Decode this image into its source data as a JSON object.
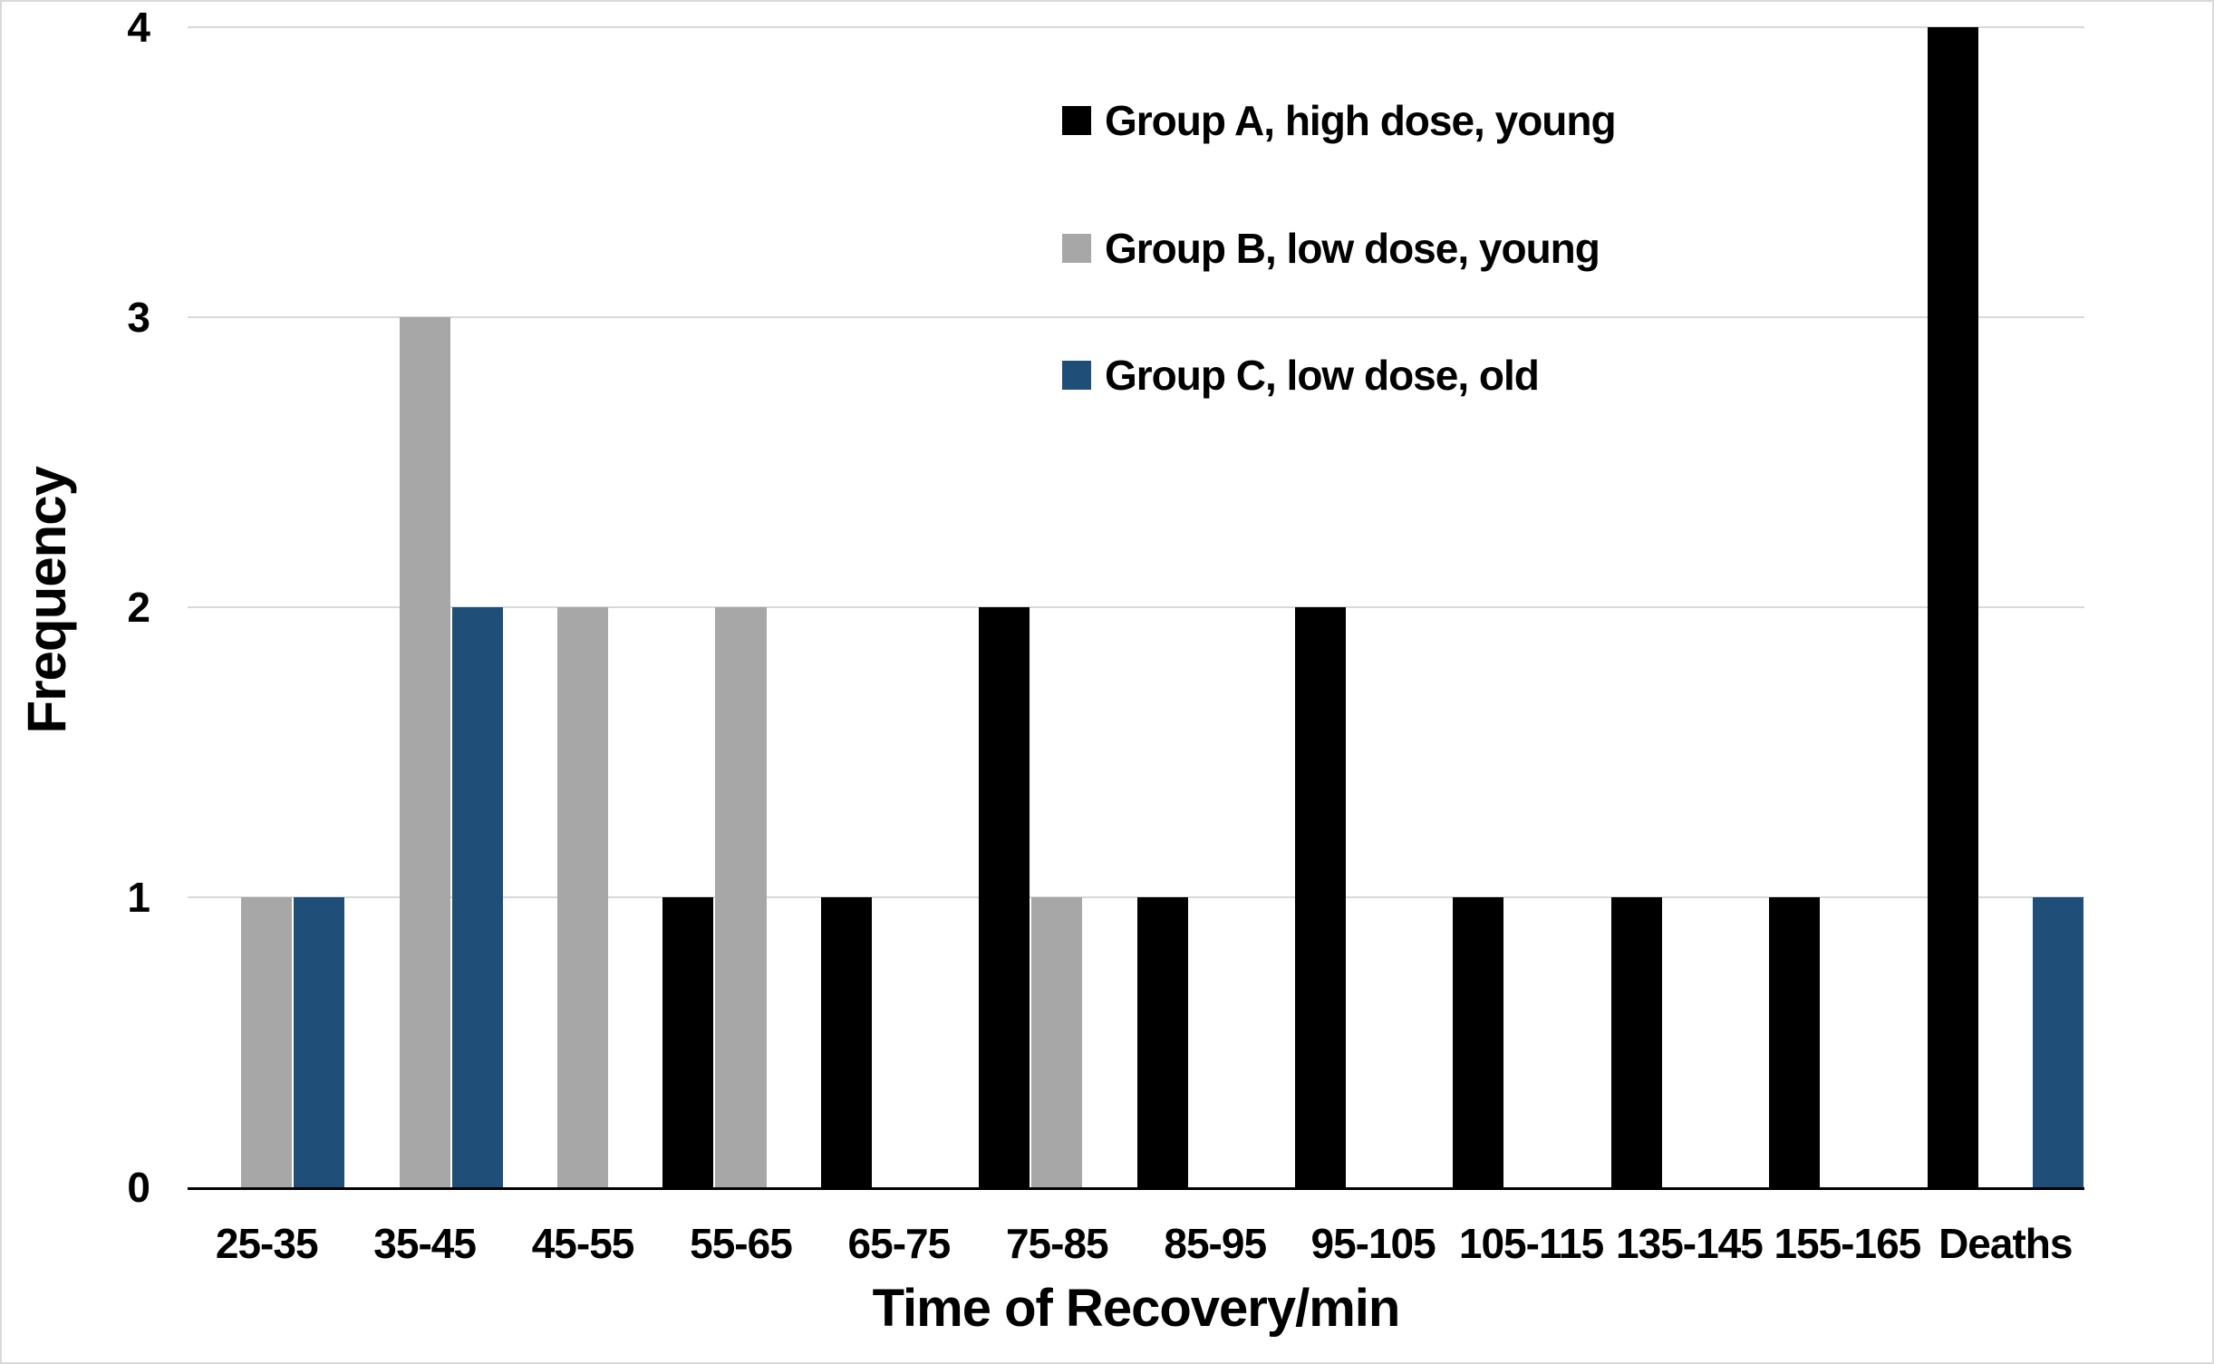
{
  "chart_data": {
    "type": "bar",
    "title": "",
    "xlabel": "Time of Recovery/min",
    "ylabel": "Frequency",
    "categories": [
      "25-35",
      "35-45",
      "45-55",
      "55-65",
      "65-75",
      "75-85",
      "85-95",
      "95-105",
      "105-115",
      "135-145",
      "155-165",
      "Deaths"
    ],
    "series": [
      {
        "name": "Group A, high dose, young",
        "color": "#000000",
        "values": [
          0,
          0,
          0,
          1,
          1,
          2,
          1,
          2,
          1,
          1,
          1,
          4
        ]
      },
      {
        "name": "Group B, low dose, young",
        "color": "#a7a7a7",
        "values": [
          1,
          3,
          2,
          2,
          0,
          1,
          0,
          0,
          0,
          0,
          0,
          0
        ]
      },
      {
        "name": "Group C, low dose, old",
        "color": "#1f4e79",
        "values": [
          1,
          2,
          0,
          0,
          0,
          0,
          0,
          0,
          0,
          0,
          0,
          1
        ]
      }
    ],
    "y_ticks": [
      0,
      1,
      2,
      3,
      4
    ],
    "ylim": [
      0,
      4
    ],
    "grid": "horizontal",
    "legend_position": "inside-top-center"
  },
  "colors": {
    "background": "#ffffff",
    "gridline": "#d9d9d9",
    "axis_line": "#000000",
    "text": "#000000",
    "canvas_border": "#d9d9d9"
  }
}
